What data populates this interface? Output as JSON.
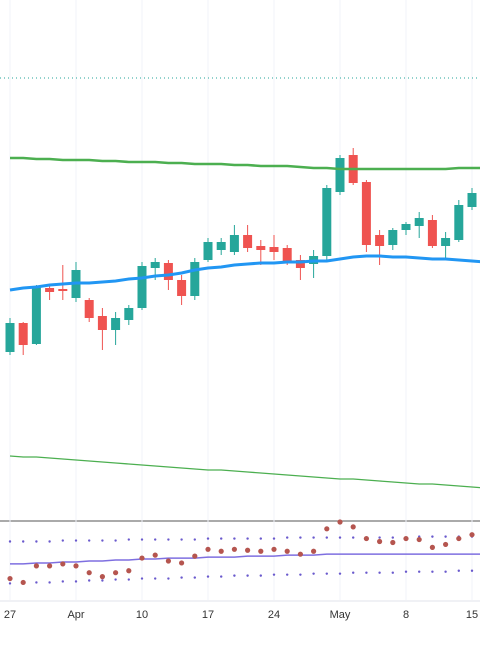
{
  "chart_data": [
    {
      "type": "candlestick",
      "categories": [
        "27",
        null,
        null,
        null,
        null,
        "Apr",
        null,
        null,
        null,
        null,
        "10",
        null,
        null,
        null,
        null,
        "17",
        null,
        null,
        null,
        null,
        "24",
        null,
        null,
        null,
        null,
        "May",
        null,
        null,
        null,
        null,
        "8",
        null,
        null,
        null,
        null,
        "15",
        null
      ],
      "open": [
        168,
        197,
        176,
        232,
        231,
        222,
        220,
        204,
        190,
        200,
        212,
        252,
        257,
        240,
        224,
        260,
        270,
        268,
        285,
        274,
        273,
        272,
        260,
        256,
        264,
        328,
        365,
        338,
        285,
        275,
        290,
        294,
        300,
        274,
        280,
        313,
        325
      ],
      "high": [
        202,
        198,
        235,
        235,
        255,
        258,
        222,
        212,
        208,
        215,
        258,
        262,
        260,
        245,
        262,
        282,
        282,
        295,
        295,
        280,
        285,
        275,
        265,
        270,
        335,
        365,
        372,
        340,
        290,
        292,
        298,
        308,
        305,
        288,
        320,
        332,
        336
      ],
      "low": [
        165,
        165,
        175,
        220,
        220,
        218,
        198,
        170,
        175,
        195,
        210,
        240,
        230,
        215,
        220,
        258,
        265,
        265,
        268,
        255,
        260,
        255,
        240,
        242,
        260,
        325,
        335,
        268,
        255,
        270,
        285,
        282,
        272,
        260,
        278,
        310,
        320
      ],
      "close": [
        197,
        175,
        233,
        228,
        229,
        250,
        202,
        190,
        202,
        212,
        254,
        258,
        240,
        224,
        258,
        278,
        278,
        285,
        272,
        270,
        268,
        258,
        252,
        264,
        332,
        362,
        337,
        275,
        274,
        290,
        296,
        302,
        274,
        282,
        315,
        327,
        334
      ],
      "up_color": "#26a69a",
      "down_color": "#ef5350",
      "series": [
        {
          "color": "#4caf50",
          "width": 2.5,
          "values": [
            362,
            362,
            361,
            361,
            360,
            360,
            360,
            359,
            359,
            358,
            358,
            358,
            357,
            357,
            356,
            356,
            356,
            355,
            355,
            354,
            354,
            354,
            353,
            352,
            352,
            351,
            351,
            351,
            351,
            351,
            351,
            351,
            351,
            351,
            352,
            352,
            352
          ]
        },
        {
          "color": "#2196f3",
          "width": 3,
          "values": [
            230,
            232,
            233,
            235,
            236,
            237,
            237,
            238,
            239,
            241,
            242,
            244,
            245,
            247,
            250,
            252,
            253,
            255,
            256,
            257,
            257,
            258,
            258,
            259,
            259,
            261,
            263,
            264,
            264,
            263,
            263,
            262,
            261,
            261,
            260,
            259,
            258
          ]
        },
        {
          "color": "#4caf50",
          "width": 1.3,
          "values": [
            64,
            63,
            63,
            62,
            61,
            60,
            59,
            58,
            57,
            56,
            55,
            54,
            53,
            52,
            51,
            50,
            50,
            49,
            48,
            47,
            46,
            45,
            44,
            43,
            42,
            41,
            41,
            40,
            39,
            38,
            37,
            36,
            36,
            35,
            34,
            33,
            32
          ]
        }
      ],
      "reference_line": {
        "value": 442,
        "color": "#26a69a"
      },
      "ylim": [
        0,
        520
      ]
    },
    {
      "type": "line",
      "series": [
        {
          "color": "#6a5acd",
          "style": "dots",
          "values": [
            60,
            60,
            60,
            60,
            61,
            61,
            61,
            61,
            61,
            62,
            62,
            62,
            62,
            62,
            62,
            63,
            63,
            63,
            63,
            63,
            63,
            64,
            64,
            64,
            64,
            64,
            64,
            64,
            64,
            64,
            64,
            65,
            65,
            65,
            65,
            65,
            65
          ]
        },
        {
          "color": "#6a5acd",
          "style": "dots",
          "values": [
            17,
            17,
            18,
            18,
            19,
            19,
            20,
            20,
            21,
            21,
            22,
            22,
            22,
            23,
            23,
            24,
            24,
            25,
            25,
            25,
            26,
            26,
            26,
            27,
            27,
            27,
            28,
            28,
            28,
            28,
            29,
            29,
            29,
            29,
            30,
            30,
            30
          ]
        },
        {
          "color": "#7e6fe0",
          "style": "line",
          "values": [
            37,
            37,
            38,
            38,
            39,
            39,
            40,
            40,
            41,
            41,
            42,
            42,
            43,
            43,
            43,
            44,
            44,
            44,
            45,
            45,
            45,
            46,
            46,
            46,
            47,
            47,
            47,
            47,
            47,
            47,
            47,
            47,
            47,
            47,
            47,
            47,
            47
          ]
        },
        {
          "color": "#b5554f",
          "style": "markers",
          "values": [
            22,
            18,
            35,
            35,
            37,
            35,
            28,
            24,
            28,
            30,
            43,
            46,
            40,
            38,
            45,
            52,
            50,
            52,
            51,
            50,
            52,
            50,
            47,
            50,
            73,
            80,
            75,
            63,
            60,
            59,
            63,
            62,
            54,
            57,
            63,
            67,
            70
          ]
        }
      ],
      "ylim": [
        0,
        80
      ]
    }
  ]
}
